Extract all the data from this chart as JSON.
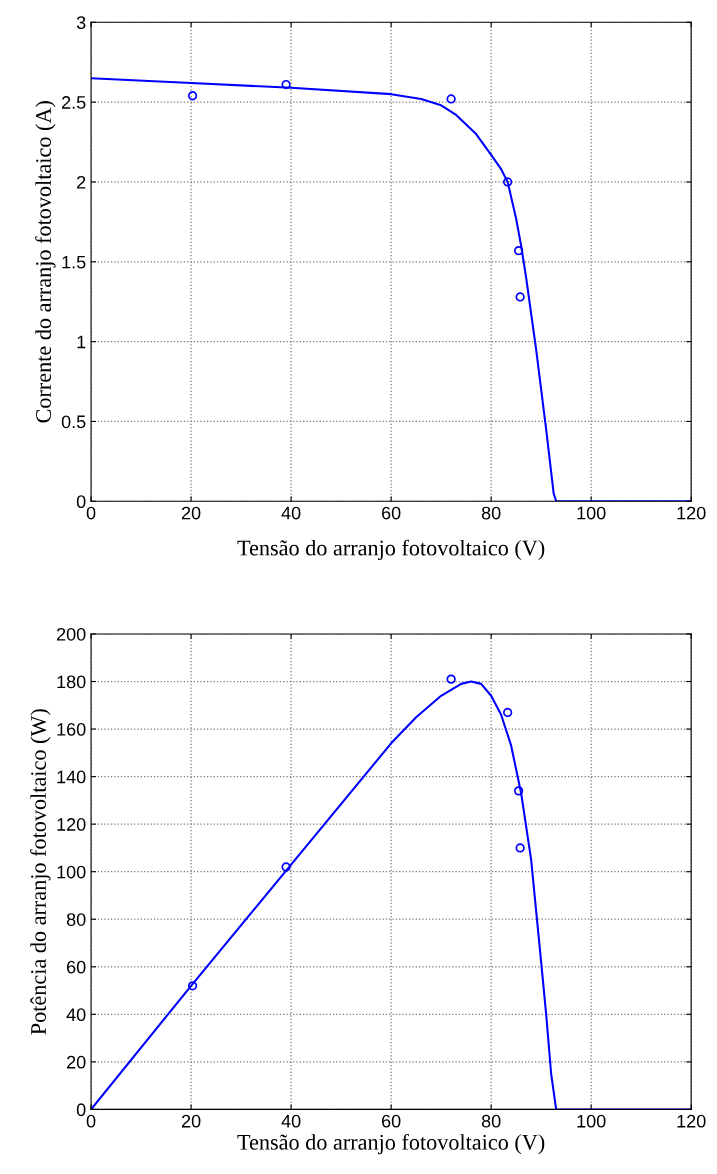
{
  "chart_data": [
    {
      "type": "line",
      "xlabel": "Tensão do arranjo fotovoltaico (V)",
      "ylabel": "Corrente do arranjo fotovoltaico (A)",
      "xlim": [
        0,
        120
      ],
      "ylim": [
        0,
        3
      ],
      "xticks": [
        0,
        20,
        40,
        60,
        80,
        100,
        120
      ],
      "yticks": [
        0,
        0.5,
        1,
        1.5,
        2,
        2.5,
        3
      ],
      "grid": true,
      "series": [
        {
          "color": "#0000ff",
          "x": [
            0,
            20,
            40,
            60,
            66,
            70,
            73,
            75,
            77,
            80,
            82,
            83.3,
            85,
            86,
            87,
            89,
            91,
            92.5,
            93,
            120
          ],
          "values": [
            2.65,
            2.62,
            2.59,
            2.55,
            2.52,
            2.48,
            2.42,
            2.36,
            2.3,
            2.17,
            2.08,
            2.0,
            1.77,
            1.6,
            1.4,
            0.95,
            0.45,
            0.05,
            0,
            0
          ]
        },
        {
          "type": "scatter",
          "color": "#0000ff",
          "marker": "circle",
          "x": [
            20.3,
            39,
            72,
            83.3,
            85.5,
            85.8
          ],
          "values": [
            2.54,
            2.61,
            2.52,
            2.0,
            1.57,
            1.28
          ]
        }
      ]
    },
    {
      "type": "line",
      "xlabel": "Tensão do arranjo fotovoltaico (V)",
      "ylabel": "Potência do arranjo fotovoltaico (W)",
      "xlim": [
        0,
        120
      ],
      "ylim": [
        0,
        200
      ],
      "xticks": [
        0,
        20,
        40,
        60,
        80,
        100,
        120
      ],
      "yticks": [
        0,
        20,
        40,
        60,
        80,
        100,
        120,
        140,
        160,
        180,
        200
      ],
      "grid": true,
      "series": [
        {
          "color": "#0000ff",
          "x": [
            0,
            20,
            40,
            60,
            65,
            70,
            74,
            76,
            78,
            80,
            82,
            84,
            86,
            88,
            90,
            91,
            92,
            93,
            120
          ],
          "values": [
            0,
            52,
            103,
            154,
            165,
            174,
            179,
            180,
            179,
            174,
            166,
            153,
            133,
            105,
            62,
            40,
            15,
            0,
            0
          ]
        },
        {
          "type": "scatter",
          "color": "#0000ff",
          "marker": "circle",
          "x": [
            20.3,
            39,
            72,
            83.3,
            85.5,
            85.8
          ],
          "values": [
            52,
            102,
            181,
            167,
            134,
            110
          ]
        }
      ]
    }
  ]
}
